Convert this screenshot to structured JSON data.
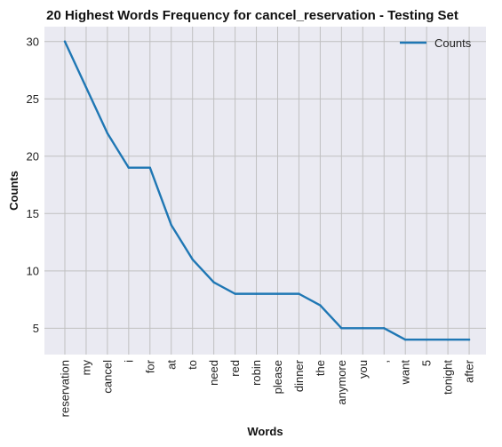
{
  "chart_data": {
    "type": "line",
    "title": "20 Highest Words Frequency for cancel_reservation - Testing Set",
    "xlabel": "Words",
    "ylabel": "Counts",
    "categories": [
      "reservation",
      "my",
      "cancel",
      "i",
      "for",
      "at",
      "to",
      "need",
      "red",
      "robin",
      "please",
      "dinner",
      "the",
      "anymore",
      "you",
      ",",
      "want",
      "5",
      "tonight",
      "after"
    ],
    "series": [
      {
        "name": "Counts",
        "values": [
          30,
          26,
          22,
          19,
          19,
          14,
          11,
          9,
          8,
          8,
          8,
          8,
          7,
          5,
          5,
          5,
          4,
          4,
          4,
          4
        ]
      }
    ],
    "ylim": [
      2.7,
      31.3
    ],
    "yticks": [
      5,
      10,
      15,
      20,
      25,
      30
    ],
    "grid": true,
    "legend_position": "top-right",
    "colors": {
      "line": "#1f77b4",
      "plot_bg": "#eaeaf2",
      "grid": "#c0c0c0"
    }
  }
}
